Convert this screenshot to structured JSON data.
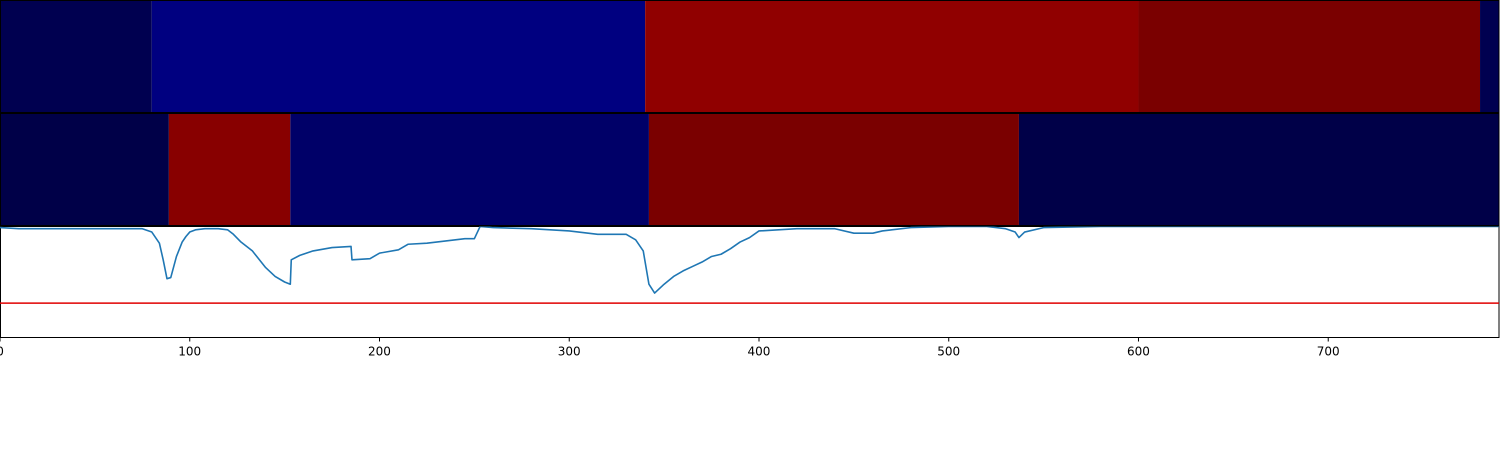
{
  "chart_data": [
    {
      "type": "heatmap",
      "panel": "top",
      "xlim": [
        0,
        790
      ],
      "segments": [
        {
          "start": 0,
          "end": 80,
          "color": "#000050"
        },
        {
          "start": 80,
          "end": 340,
          "color": "#000080"
        },
        {
          "start": 340,
          "end": 600,
          "color": "#900000"
        },
        {
          "start": 600,
          "end": 780,
          "color": "#7a0000"
        },
        {
          "start": 780,
          "end": 790,
          "color": "#000050"
        }
      ]
    },
    {
      "type": "heatmap",
      "panel": "middle",
      "xlim": [
        0,
        790
      ],
      "segments": [
        {
          "start": 0,
          "end": 89,
          "color": "#000048"
        },
        {
          "start": 89,
          "end": 153,
          "color": "#880000"
        },
        {
          "start": 153,
          "end": 342,
          "color": "#000068"
        },
        {
          "start": 342,
          "end": 537,
          "color": "#7a0000"
        },
        {
          "start": 537,
          "end": 790,
          "color": "#000048"
        }
      ]
    },
    {
      "type": "line",
      "panel": "bottom",
      "xlim": [
        0,
        790
      ],
      "ylim": [
        0,
        1
      ],
      "grid": false,
      "x_ticks": [
        0,
        100,
        200,
        300,
        400,
        500,
        600,
        700
      ],
      "tick_labels": [
        "0",
        "100",
        "200",
        "300",
        "400",
        "500",
        "600",
        "700"
      ],
      "threshold": {
        "value": 0.31,
        "color": "#e00000"
      },
      "series": [
        {
          "color": "#1f77b4",
          "x": [
            0,
            10,
            30,
            55,
            75,
            80,
            84,
            86,
            88,
            90,
            93,
            96,
            98,
            100,
            103,
            108,
            115,
            120,
            123,
            127,
            133,
            140,
            145,
            150,
            153,
            153.5,
            158,
            165,
            175,
            185,
            185.5,
            195,
            200,
            210,
            215,
            225,
            235,
            245,
            250,
            253,
            260,
            280,
            300,
            315,
            320,
            325,
            330,
            335,
            339,
            342,
            345,
            350,
            355,
            360,
            365,
            370,
            375,
            380,
            385,
            390,
            395,
            400,
            420,
            440,
            450,
            460,
            465,
            470,
            480,
            500,
            520,
            530,
            535,
            537,
            540,
            550,
            580,
            600,
            650,
            700,
            790
          ],
          "y": [
            0.99,
            0.98,
            0.98,
            0.98,
            0.98,
            0.95,
            0.85,
            0.7,
            0.53,
            0.54,
            0.73,
            0.86,
            0.91,
            0.95,
            0.97,
            0.98,
            0.98,
            0.97,
            0.93,
            0.86,
            0.78,
            0.63,
            0.55,
            0.5,
            0.48,
            0.7,
            0.74,
            0.78,
            0.81,
            0.82,
            0.7,
            0.71,
            0.76,
            0.79,
            0.84,
            0.85,
            0.87,
            0.89,
            0.89,
            1.0,
            0.99,
            0.98,
            0.96,
            0.93,
            0.93,
            0.93,
            0.93,
            0.88,
            0.78,
            0.48,
            0.4,
            0.48,
            0.55,
            0.6,
            0.64,
            0.68,
            0.73,
            0.75,
            0.8,
            0.86,
            0.9,
            0.96,
            0.98,
            0.98,
            0.94,
            0.94,
            0.96,
            0.97,
            0.99,
            1.0,
            1.0,
            0.98,
            0.95,
            0.9,
            0.95,
            0.99,
            1.0,
            1.0,
            1.0,
            1.0,
            1.0
          ]
        }
      ]
    }
  ]
}
